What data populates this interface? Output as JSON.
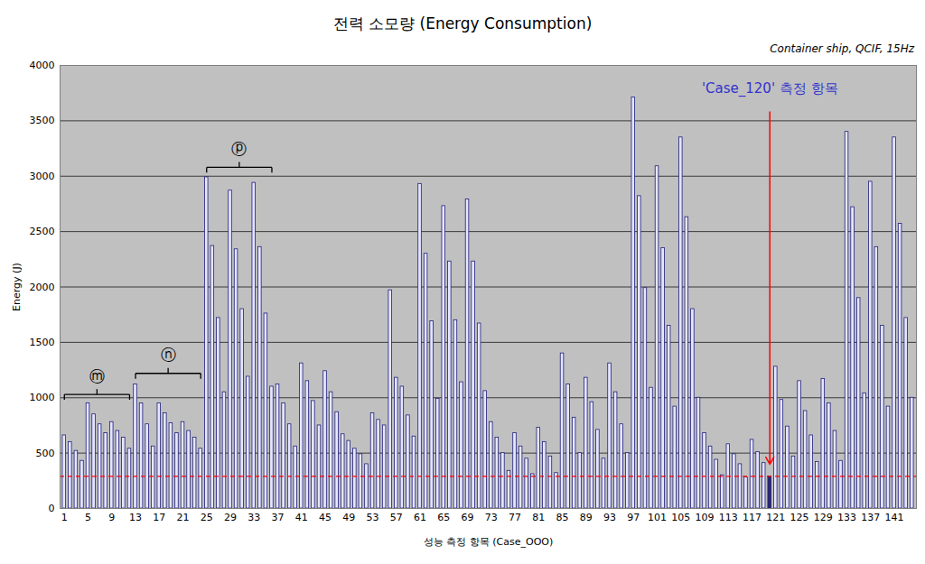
{
  "chart_data": {
    "type": "bar",
    "title": "전력 소모량 (Energy Consumption)",
    "subtitle": "Container ship, QCIF, 15Hz",
    "x_label": "성능 측정 항목 (Case_OOO)",
    "y_label": "Energy (J)",
    "categories": [
      "1",
      null,
      null,
      null,
      "5",
      null,
      null,
      null,
      "9",
      null,
      null,
      null,
      "13",
      null,
      null,
      null,
      "17",
      null,
      null,
      null,
      "21",
      null,
      null,
      null,
      "25",
      null,
      null,
      null,
      "29",
      null,
      null,
      null,
      "33",
      null,
      null,
      null,
      "37",
      null,
      null,
      null,
      "41",
      null,
      null,
      null,
      "45",
      null,
      null,
      null,
      "49",
      null,
      null,
      null,
      "53",
      null,
      null,
      null,
      "57",
      null,
      null,
      null,
      "61",
      null,
      null,
      null,
      "65",
      null,
      null,
      null,
      "69",
      null,
      null,
      null,
      "73",
      null,
      null,
      null,
      "77",
      null,
      null,
      null,
      "81",
      null,
      null,
      null,
      "85",
      null,
      null,
      null,
      "89",
      null,
      null,
      null,
      "93",
      null,
      null,
      null,
      "97",
      null,
      null,
      null,
      "101",
      null,
      null,
      null,
      "105",
      null,
      null,
      null,
      "109",
      null,
      null,
      null,
      "113",
      null,
      null,
      null,
      "117",
      null,
      null,
      null,
      "121",
      null,
      null,
      null,
      "125",
      null,
      null,
      null,
      "129",
      null,
      null,
      null,
      "133",
      null,
      null,
      null,
      "137",
      null,
      null,
      null,
      "141",
      null,
      null,
      null
    ],
    "values": [
      660,
      600,
      520,
      430,
      950,
      850,
      760,
      680,
      780,
      700,
      640,
      540,
      1120,
      950,
      760,
      560,
      950,
      860,
      770,
      680,
      780,
      700,
      640,
      540,
      2990,
      2370,
      1720,
      1050,
      2870,
      2340,
      1800,
      1190,
      2940,
      2360,
      1760,
      1100,
      1120,
      950,
      760,
      560,
      1310,
      1150,
      970,
      750,
      1240,
      1050,
      870,
      670,
      610,
      540,
      490,
      400,
      860,
      800,
      750,
      1970,
      1180,
      1100,
      840,
      650,
      2930,
      2300,
      1690,
      990,
      2730,
      2230,
      1700,
      1140,
      2790,
      2230,
      1670,
      1060,
      780,
      640,
      500,
      340,
      680,
      560,
      450,
      310,
      730,
      600,
      470,
      320,
      1400,
      1120,
      820,
      500,
      1180,
      960,
      710,
      450,
      1310,
      1050,
      760,
      500,
      3710,
      2820,
      1990,
      1090,
      3090,
      2350,
      1650,
      920,
      3350,
      2630,
      1800,
      1000,
      680,
      560,
      440,
      300,
      580,
      490,
      400,
      280,
      620,
      510,
      410,
      290,
      1280,
      980,
      740,
      470,
      1150,
      880,
      660,
      420,
      1170,
      950,
      700,
      430,
      3400,
      2720,
      1900,
      1040,
      2950,
      2360,
      1650,
      920,
      3350,
      2570,
      1720,
      1000
    ],
    "colors": [
      "#e6e6ff",
      "#e6e6ff",
      "#e6e6ff",
      "#e6e6ff",
      "#e6e6ff",
      "#e6e6ff",
      "#e6e6ff",
      "#e6e6ff",
      "#e6e6ff",
      "#e6e6ff",
      "#e6e6ff",
      "#e6e6ff",
      "#e6e6ff",
      "#e6e6ff",
      "#e6e6ff",
      "#e6e6ff",
      "#e6e6ff",
      "#e6e6ff",
      "#e6e6ff",
      "#e6e6ff",
      "#e6e6ff",
      "#e6e6ff",
      "#e6e6ff",
      "#e6e6ff",
      "#e6e6ff",
      "#e6e6ff",
      "#e6e6ff",
      "#e6e6ff",
      "#e6e6ff",
      "#e6e6ff",
      "#e6e6ff",
      "#e6e6ff",
      "#e6e6ff",
      "#e6e6ff",
      "#e6e6ff",
      "#e6e6ff",
      "#e6e6ff",
      "#e6e6ff",
      "#e6e6ff",
      "#e6e6ff",
      "#e6e6ff",
      "#e6e6ff",
      "#e6e6ff",
      "#e6e6ff",
      "#e6e6ff",
      "#e6e6ff",
      "#e6e6ff",
      "#e6e6ff",
      "#e6e6ff",
      "#e6e6ff",
      "#e6e6ff",
      "#e6e6ff",
      "#e6e6ff",
      "#e6e6ff",
      "#e6e6ff",
      "#e6e6ff",
      "#e6e6ff",
      "#e6e6ff",
      "#e6e6ff",
      "#e6e6ff",
      "#e6e6ff",
      "#e6e6ff",
      "#e6e6ff",
      "#e6e6ff",
      "#e6e6ff",
      "#e6e6ff",
      "#e6e6ff",
      "#e6e6ff",
      "#e6e6ff",
      "#e6e6ff",
      "#e6e6ff",
      "#e6e6ff",
      "#e6e6ff",
      "#e6e6ff",
      "#e6e6ff",
      "#e6e6ff",
      "#e6e6ff",
      "#e6e6ff",
      "#e6e6ff",
      "#e6e6ff",
      "#e6e6ff",
      "#e6e6ff",
      "#e6e6ff",
      "#e6e6ff",
      "#e6e6ff",
      "#e6e6ff",
      "#e6e6ff",
      "#e6e6ff",
      "#e6e6ff",
      "#e6e6ff",
      "#e6e6ff",
      "#e6e6ff",
      "#e6e6ff",
      "#e6e6ff",
      "#e6e6ff",
      "#e6e6ff",
      "#e6e6ff",
      "#e6e6ff",
      "#e6e6ff",
      "#e6e6ff",
      "#e6e6ff",
      "#e6e6ff",
      "#e6e6ff",
      "#e6e6ff",
      "#e6e6ff",
      "#e6e6ff",
      "#e6e6ff",
      "#e6e6ff",
      "#e6e6ff",
      "#e6e6ff",
      "#e6e6ff",
      "#e6e6ff",
      "#e6e6ff",
      "#e6e6ff",
      "#e6e6ff",
      "#e6e6ff",
      "#e6e6ff",
      "#e6e6ff",
      "#e6e6ff",
      "#2a2a6e",
      "#e6e6ff",
      "#e6e6ff",
      "#e6e6ff",
      "#e6e6ff",
      "#e6e6ff",
      "#e6e6ff",
      "#e6e6ff",
      "#e6e6ff",
      "#e6e6ff",
      "#e6e6ff",
      "#e6e6ff",
      "#e6e6ff",
      "#e6e6ff",
      "#e6e6ff",
      "#e6e6ff",
      "#e6e6ff",
      "#e6e6ff",
      "#e6e6ff",
      "#e6e6ff",
      "#e6e6ff",
      "#e6e6ff",
      "#e6e6ff",
      "#e6e6ff",
      "#e6e6ff"
    ],
    "ylim": [
      0,
      4000
    ],
    "yticks": [
      0,
      500,
      1000,
      1500,
      2000,
      2500,
      3000,
      3500,
      4000
    ],
    "grid": true,
    "reference_line": {
      "value": 290,
      "color": "#ff0000",
      "line_style": "dashed"
    },
    "braces": [
      {
        "text": "ⓜ",
        "from": 1,
        "to": 12,
        "y": 1030
      },
      {
        "text": "ⓝ",
        "from": 13,
        "to": 24,
        "y": 1220
      },
      {
        "text": "ⓟ",
        "from": 25,
        "to": 36,
        "y": 3080
      }
    ],
    "annotation": {
      "text": "'Case_120' 측정 항목",
      "case": 120,
      "y": 3790,
      "arrow_from": 3580,
      "arrow_to": 400,
      "color": "#3333cc",
      "arrow_color": "#ff0000"
    }
  }
}
